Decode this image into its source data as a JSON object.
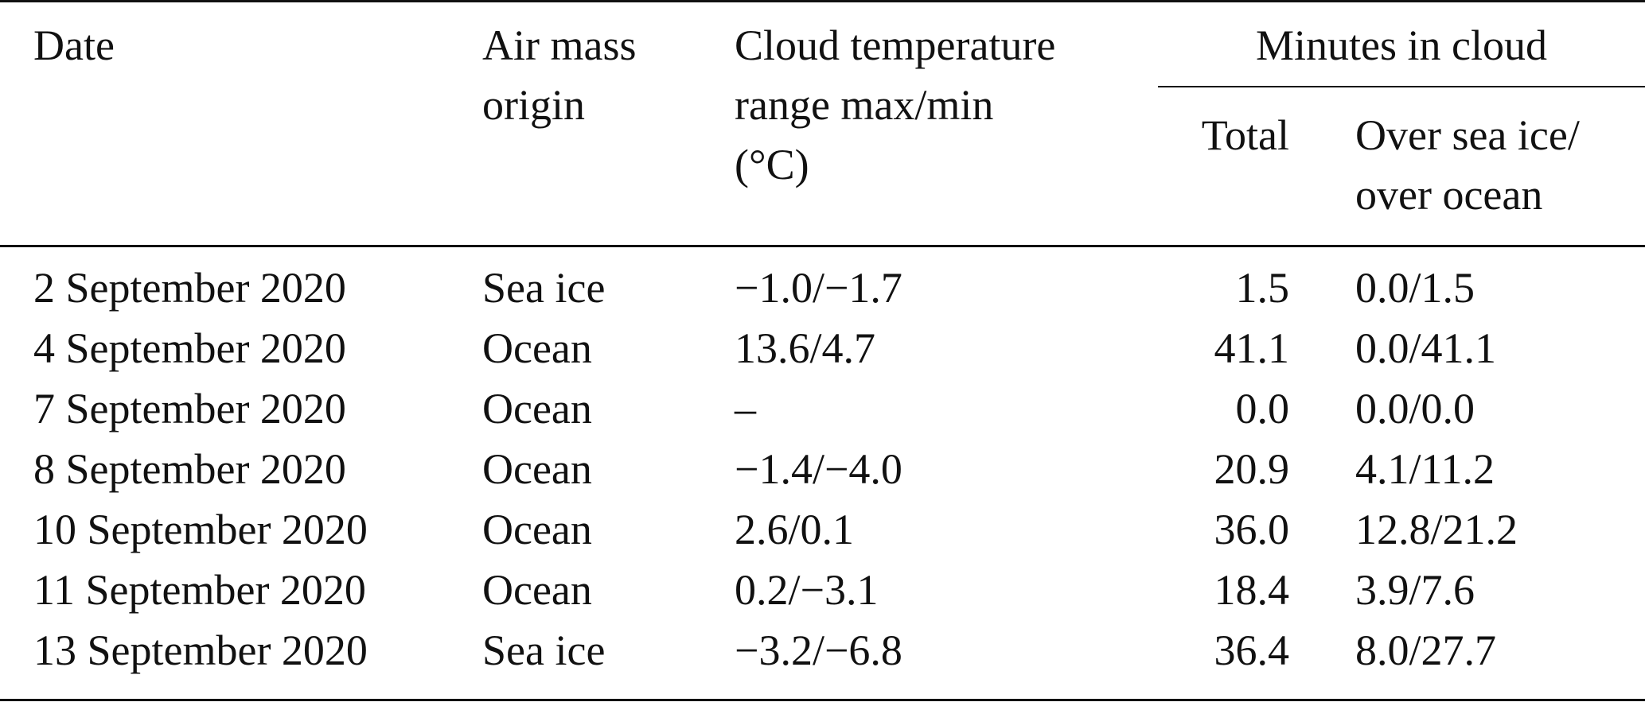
{
  "table": {
    "headers": {
      "date": "Date",
      "air_mass_line1": "Air mass",
      "air_mass_line2": "origin",
      "temp_line1": "Cloud temperature",
      "temp_line2": "range max/min",
      "temp_line3": "(°C)",
      "minutes_group": "Minutes in cloud",
      "total": "Total",
      "over_line1": "Over sea ice/",
      "over_line2": "over ocean"
    },
    "rows": [
      {
        "date": "2 September 2020",
        "air_mass": "Sea ice",
        "temp_range": "−1.0/−1.7",
        "total": "1.5",
        "over": "0.0/1.5"
      },
      {
        "date": "4 September 2020",
        "air_mass": "Ocean",
        "temp_range": "13.6/4.7",
        "total": "41.1",
        "over": "0.0/41.1"
      },
      {
        "date": "7 September 2020",
        "air_mass": "Ocean",
        "temp_range": "–",
        "total": "0.0",
        "over": "0.0/0.0"
      },
      {
        "date": "8 September 2020",
        "air_mass": "Ocean",
        "temp_range": "−1.4/−4.0",
        "total": "20.9",
        "over": "4.1/11.2"
      },
      {
        "date": "10 September 2020",
        "air_mass": "Ocean",
        "temp_range": "2.6/0.1",
        "total": "36.0",
        "over": "12.8/21.2"
      },
      {
        "date": "11 September 2020",
        "air_mass": "Ocean",
        "temp_range": "0.2/−3.1",
        "total": "18.4",
        "over": "3.9/7.6"
      },
      {
        "date": "13 September 2020",
        "air_mass": "Sea ice",
        "temp_range": "−3.2/−6.8",
        "total": "36.4",
        "over": "8.0/27.7"
      }
    ]
  }
}
